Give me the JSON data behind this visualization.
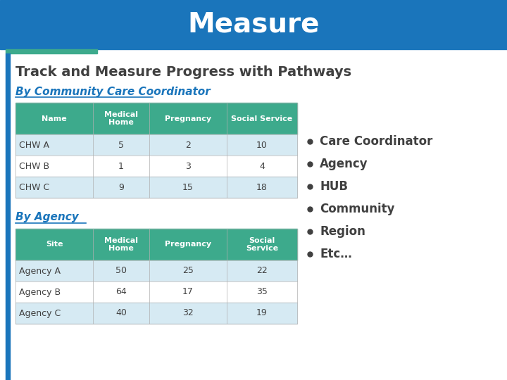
{
  "title": "Measure",
  "subtitle": "Track and Measure Progress with Pathways",
  "section1_heading": "By Community Care Coordinator",
  "section2_heading": "By Agency",
  "table1_headers": [
    "Name",
    "Medical\nHome",
    "Pregnancy",
    "Social Service"
  ],
  "table1_rows": [
    [
      "CHW A",
      "5",
      "2",
      "10"
    ],
    [
      "CHW B",
      "1",
      "3",
      "4"
    ],
    [
      "CHW C",
      "9",
      "15",
      "18"
    ]
  ],
  "table2_headers": [
    "Site",
    "Medical\nHome",
    "Pregnancy",
    "Social\nService"
  ],
  "table2_rows": [
    [
      "Agency A",
      "50",
      "25",
      "22"
    ],
    [
      "Agency B",
      "64",
      "17",
      "35"
    ],
    [
      "Agency C",
      "40",
      "32",
      "19"
    ]
  ],
  "bullet_items": [
    "Care Coordinator",
    "Agency",
    "HUB",
    "Community",
    "Region",
    "Etc…"
  ],
  "header_bg": "#1a75bb",
  "title_color": "#ffffff",
  "table1_header_bg": "#3daa8c",
  "table2_header_bg": "#3daa8c",
  "table_row_even_bg": "#d6eaf3",
  "table_row_odd_bg": "#ffffff",
  "section_heading_color": "#1a75bb",
  "subtitle_color": "#404040",
  "body_bg": "#ffffff",
  "left_bar_color": "#1a75bb",
  "bullet_color": "#404040",
  "table_text_header": "#ffffff",
  "table_text_body": "#404040"
}
